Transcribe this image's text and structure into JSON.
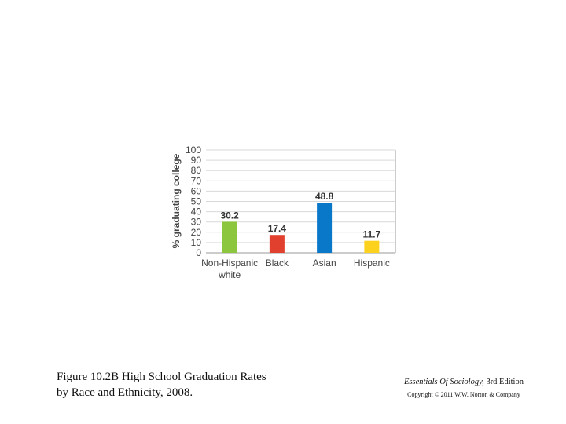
{
  "chart_data": {
    "type": "bar",
    "ylabel": "% graduating college",
    "ylim": [
      0,
      100
    ],
    "yticks": [
      0,
      10,
      20,
      30,
      40,
      50,
      60,
      70,
      80,
      90,
      100
    ],
    "grid": true,
    "categories": [
      {
        "lines": [
          "Non-Hispanic",
          "white"
        ]
      },
      {
        "lines": [
          "Black"
        ]
      },
      {
        "lines": [
          "Asian"
        ]
      },
      {
        "lines": [
          "Hispanic"
        ]
      }
    ],
    "values": [
      30.2,
      17.4,
      48.8,
      11.7
    ],
    "value_labels": [
      "30.2",
      "17.4",
      "48.8",
      "11.7"
    ],
    "colors": [
      "#8cc63f",
      "#e2402e",
      "#0a78c8",
      "#fdd21f"
    ]
  },
  "caption": {
    "line1": "Figure 10.2B High School Graduation Rates",
    "line2": "by Race and Ethnicity, 2008."
  },
  "credit": {
    "book_title": "Essentials Of Sociology,",
    "edition": " 3rd Edition",
    "copyright": "Copyright © 2011  W.W. Norton & Company"
  }
}
